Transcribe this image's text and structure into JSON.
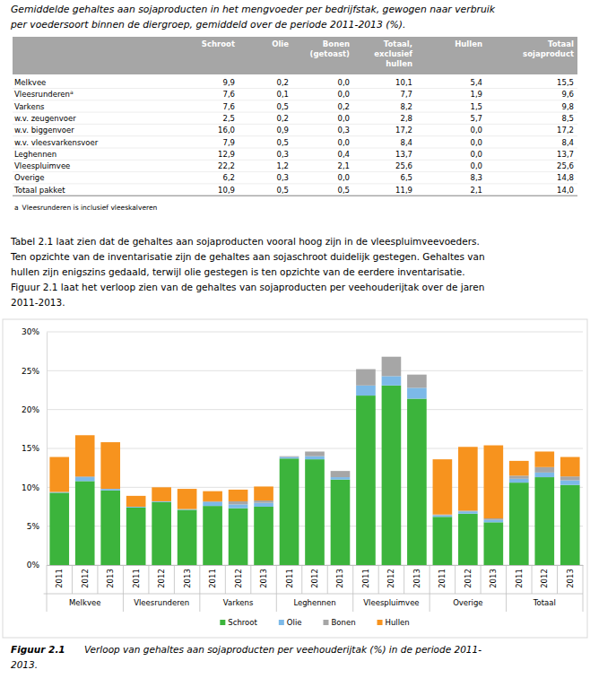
{
  "table_title": [
    "Gemiddelde gehaltes aan sojaproducten in het mengvoeder per bedrijfstak, gewogen naar verbruik",
    "per voedersoort binnen de diergroep, gemiddeld over de periode 2011-2013 (%)."
  ],
  "table": {
    "header": [
      [
        "Schroot"
      ],
      [
        "Olie"
      ],
      [
        "Bonen",
        "(getoast)"
      ],
      [
        "Totaal,",
        "exclusief",
        "hullen"
      ],
      [
        "Hullen"
      ],
      [
        "Totaal",
        "sojaproduct"
      ]
    ],
    "rows": [
      {
        "label": "Melkvee",
        "values": [
          "9,9",
          "0,2",
          "0,0",
          "10,1",
          "5,4",
          "15,5"
        ]
      },
      {
        "label": "Vleesrunderen",
        "sup": "a",
        "values": [
          "7,6",
          "0,1",
          "0,0",
          "7,7",
          "1,9",
          "9,6"
        ]
      },
      {
        "label": "Varkens",
        "values": [
          "7,6",
          "0,5",
          "0,2",
          "8,2",
          "1,5",
          "9,8"
        ]
      },
      {
        "label": "w.v. zeugenvoer",
        "values": [
          "2,5",
          "0,2",
          "0,0",
          "2,8",
          "5,7",
          "8,5"
        ]
      },
      {
        "label": "w.v. biggenvoer",
        "values": [
          "16,0",
          "0,9",
          "0,3",
          "17,2",
          "0,0",
          "17,2"
        ]
      },
      {
        "label": "w.v. vleesvarkensvoer",
        "values": [
          "7,9",
          "0,5",
          "0,0",
          "8,4",
          "0,0",
          "8,4"
        ]
      },
      {
        "label": "Leghennen",
        "values": [
          "12,9",
          "0,3",
          "0,4",
          "13,7",
          "0,0",
          "13,7"
        ]
      },
      {
        "label": "Vleespluimvee",
        "values": [
          "22,2",
          "1,2",
          "2,1",
          "25,6",
          "0,0",
          "25,6"
        ]
      },
      {
        "label": "Overige",
        "values": [
          "6,2",
          "0,3",
          "0,0",
          "6,5",
          "8,3",
          "14,8"
        ]
      },
      {
        "label": "Totaal pakket",
        "values": [
          "10,9",
          "0,5",
          "0,5",
          "11,9",
          "2,1",
          "14,0"
        ]
      }
    ],
    "footnote": {
      "sup": "a",
      "text": "Vleesrunderen is inclusief vleeskalveren"
    }
  },
  "paragraph": [
    "Tabel 2.1 laat zien dat de gehaltes aan sojaproducten vooral hoog zijn in de vleespluimveevoeders.",
    "Ten opzichte van de inventarisatie zijn de gehaltes aan sojaschroot duidelijk gestegen. Gehaltes van",
    "hullen zijn enigszins gedaald, terwijl olie gestegen is ten opzichte van de eerdere inventarisatie.",
    "Figuur 2.1 laat het verloop zien van de gehaltes van sojaproducten per veehouderijtak over de jaren",
    "2011-2013."
  ],
  "chart_data": {
    "type": "bar",
    "stacked": true,
    "grid": true,
    "legend": "bottom",
    "categories": [
      "2011",
      "2012",
      "2013",
      "2011",
      "2012",
      "2013",
      "2011",
      "2012",
      "2013",
      "2011",
      "2012",
      "2013",
      "2011",
      "2012",
      "2013",
      "2011",
      "2012",
      "2013",
      "2011",
      "2012",
      "2013"
    ],
    "groups": [
      "Melkvee",
      "Vleesrunderen",
      "Varkens",
      "Leghennen",
      "Vleespluimvee",
      "Overige",
      "Totaal"
    ],
    "ylim": [
      0,
      30
    ],
    "yticks": [
      {
        "value": 0,
        "label": "0%"
      },
      {
        "value": 5,
        "label": "5%"
      },
      {
        "value": 10,
        "label": "10%"
      },
      {
        "value": 15,
        "label": "15%"
      },
      {
        "value": 20,
        "label": "20%"
      },
      {
        "value": 25,
        "label": "25%"
      },
      {
        "value": 30,
        "label": "30%"
      }
    ],
    "series": [
      {
        "name": "Schroot",
        "color": "#3cb43c",
        "values": [
          9.3,
          10.8,
          9.6,
          7.4,
          8.1,
          7.1,
          7.6,
          7.3,
          7.5,
          13.7,
          13.6,
          11.0,
          21.8,
          23.1,
          21.4,
          6.2,
          6.6,
          5.5,
          10.6,
          11.3,
          10.3
        ]
      },
      {
        "name": "Olie",
        "color": "#7cb9e8",
        "values": [
          0.1,
          0.5,
          0.2,
          0.1,
          0.1,
          0.1,
          0.5,
          0.5,
          0.5,
          0.2,
          0.4,
          0.3,
          1.3,
          1.2,
          1.4,
          0.2,
          0.3,
          0.3,
          0.5,
          0.6,
          0.6
        ]
      },
      {
        "name": "Bonen",
        "color": "#a6a6a6",
        "values": [
          0.0,
          0.1,
          0.0,
          0.0,
          0.0,
          0.0,
          0.1,
          0.4,
          0.3,
          0.1,
          0.6,
          0.8,
          2.1,
          2.5,
          1.7,
          0.1,
          0.1,
          0.2,
          0.4,
          0.7,
          0.5
        ]
      },
      {
        "name": "Hullen",
        "color": "#f7931e",
        "values": [
          4.5,
          5.3,
          6.0,
          1.4,
          1.8,
          2.6,
          1.3,
          1.5,
          1.8,
          0.0,
          0.0,
          0.0,
          0.0,
          0.0,
          0.0,
          7.1,
          8.2,
          9.4,
          1.9,
          2.0,
          2.5
        ]
      }
    ]
  },
  "caption": {
    "label": "Figuur 2.1",
    "text": [
      "Verloop van gehaltes aan sojaproducten per veehouderijtak (%) in de periode 2011-",
      "2013."
    ]
  }
}
